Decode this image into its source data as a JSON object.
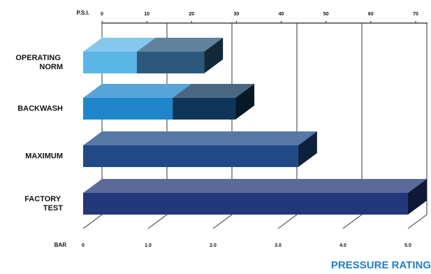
{
  "chart_data": {
    "type": "bar",
    "orientation": "horizontal",
    "stacked": true,
    "title": "PRESSURE RATING",
    "xlabel": "P.S.I.",
    "x2label": "BAR",
    "categories": [
      "OPERATING NORM",
      "BACKWASH",
      "MAXIMUM",
      "FACTORY TEST"
    ],
    "series": [
      {
        "colors": [
          "#5bb6e8",
          "#1f86cc",
          "#1f4a86",
          "#22387a"
        ],
        "values": [
          12,
          20,
          48,
          72.5
        ]
      },
      {
        "colors": [
          "#2b587c",
          "#0f3658",
          "#1f4a86",
          "#22387a"
        ],
        "values": [
          15,
          14,
          null,
          null
        ]
      }
    ],
    "xlim": [
      0,
      72.5
    ],
    "xticks": [
      0,
      10,
      20,
      30,
      40,
      50,
      60,
      70
    ],
    "x2lim": [
      0,
      5
    ],
    "x2ticks": [
      0,
      {
        "value": 1,
        "label": "1.0"
      },
      {
        "value": 2,
        "label": "2.0"
      },
      {
        "value": 3,
        "label": "3.0"
      },
      {
        "value": 4,
        "label": "4.0"
      },
      {
        "value": 5,
        "label": "5.0"
      }
    ],
    "grid": true
  }
}
